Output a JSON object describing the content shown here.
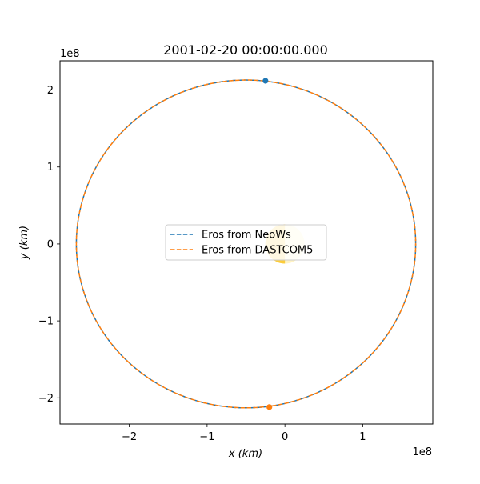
{
  "chart_data": {
    "type": "line",
    "title": "2001-02-20 00:00:00.000",
    "xlabel": "x (km)",
    "ylabel": "y (km)",
    "x_offset_label": "1e8",
    "y_offset_label": "1e8",
    "x_ticks": [
      {
        "value": -2,
        "label": "−2"
      },
      {
        "value": -1,
        "label": "−1"
      },
      {
        "value": 0,
        "label": "0"
      },
      {
        "value": 1,
        "label": "1"
      }
    ],
    "y_ticks": [
      {
        "value": -2,
        "label": "−2"
      },
      {
        "value": -1,
        "label": "−1"
      },
      {
        "value": 0,
        "label": "0"
      },
      {
        "value": 1,
        "label": "1"
      },
      {
        "value": 2,
        "label": "2"
      }
    ],
    "xlim": [
      -2.89,
      1.9
    ],
    "ylim": [
      -2.34,
      2.38
    ],
    "grid": false,
    "legend_location": "center",
    "sun": {
      "x": 0,
      "y": 0,
      "radius": 0.6,
      "color": "#fff3c4",
      "core_color": "#fccc3a"
    },
    "series": [
      {
        "name": "Eros from NeoWs",
        "color": "#1f77b4",
        "linestyle": "dashed",
        "orbit": {
          "center_x": -0.5,
          "center_y": 0,
          "semi_axis_x": 2.18,
          "semi_axis_y": 2.13
        },
        "position": {
          "x": -0.25,
          "y": 2.12
        }
      },
      {
        "name": "Eros from DASTCOM5",
        "color": "#ff7f0e",
        "linestyle": "dashed",
        "orbit": {
          "center_x": -0.5,
          "center_y": 0,
          "semi_axis_x": 2.18,
          "semi_axis_y": 2.13
        },
        "position": {
          "x": -0.2,
          "y": -2.12
        }
      }
    ]
  }
}
